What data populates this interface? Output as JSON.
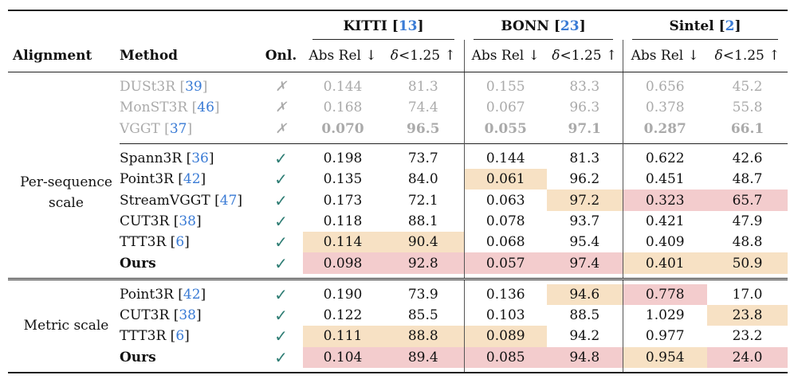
{
  "header": {
    "alignment": "Alignment",
    "method": "Method",
    "online": "Onl.",
    "datasets": [
      {
        "name": "KITTI",
        "ref": "13"
      },
      {
        "name": "BONN",
        "ref": "23"
      },
      {
        "name": "Sintel",
        "ref": "2"
      }
    ],
    "abs_rel": "Abs Rel ↓",
    "delta_sym": "δ",
    "delta_rest": "<1.25 ↑"
  },
  "colors": {
    "first": "#f3cccd",
    "second": "#f7e1c4",
    "citation": "#3a7bd5",
    "check": "#2e7d74"
  },
  "groups": [
    {
      "alignment": "",
      "blocks": [
        {
          "style": "gray",
          "rows": [
            {
              "method": "DUSt3R",
              "ref": "39",
              "online": "✗",
              "bold_values": false,
              "values": [
                "0.144",
                "81.3",
                "0.155",
                "83.3",
                "0.656",
                "45.2"
              ],
              "highlight": [
                null,
                null,
                null,
                null,
                null,
                null
              ]
            },
            {
              "method": "MonST3R",
              "ref": "46",
              "online": "✗",
              "bold_values": false,
              "values": [
                "0.168",
                "74.4",
                "0.067",
                "96.3",
                "0.378",
                "55.8"
              ],
              "highlight": [
                null,
                null,
                null,
                null,
                null,
                null
              ]
            },
            {
              "method": "VGGT",
              "ref": "37",
              "online": "✗",
              "bold_values": true,
              "values": [
                "0.070",
                "96.5",
                "0.055",
                "97.1",
                "0.287",
                "66.1"
              ],
              "highlight": [
                null,
                null,
                null,
                null,
                null,
                null
              ]
            }
          ]
        }
      ]
    },
    {
      "alignment": "Per-sequence scale",
      "blocks": [
        {
          "style": "normal",
          "rows": [
            {
              "method": "Spann3R",
              "ref": "36",
              "online": "✓",
              "values": [
                "0.198",
                "73.7",
                "0.144",
                "81.3",
                "0.622",
                "42.6"
              ],
              "highlight": [
                null,
                null,
                null,
                null,
                null,
                null
              ]
            },
            {
              "method": "Point3R",
              "ref": "42",
              "online": "✓",
              "values": [
                "0.135",
                "84.0",
                "0.061",
                "96.2",
                "0.451",
                "48.7"
              ],
              "highlight": [
                null,
                null,
                "second",
                null,
                null,
                null
              ]
            },
            {
              "method": "StreamVGGT",
              "ref": "47",
              "online": "✓",
              "values": [
                "0.173",
                "72.1",
                "0.063",
                "97.2",
                "0.323",
                "65.7"
              ],
              "highlight": [
                null,
                null,
                null,
                "second",
                "first",
                "first"
              ]
            },
            {
              "method": "CUT3R",
              "ref": "38",
              "online": "✓",
              "values": [
                "0.118",
                "88.1",
                "0.078",
                "93.7",
                "0.421",
                "47.9"
              ],
              "highlight": [
                null,
                null,
                null,
                null,
                null,
                null
              ]
            },
            {
              "method": "TTT3R",
              "ref": "6",
              "online": "✓",
              "values": [
                "0.114",
                "90.4",
                "0.068",
                "95.4",
                "0.409",
                "48.8"
              ],
              "highlight": [
                "second",
                "second",
                null,
                null,
                null,
                null
              ]
            },
            {
              "method": "Ours",
              "ref": "",
              "bold_method": true,
              "online": "✓",
              "values": [
                "0.098",
                "92.8",
                "0.057",
                "97.4",
                "0.401",
                "50.9"
              ],
              "highlight": [
                "first",
                "first",
                "first",
                "first",
                "second",
                "second"
              ]
            }
          ]
        }
      ]
    },
    {
      "alignment": "Metric scale",
      "blocks": [
        {
          "style": "normal",
          "rows": [
            {
              "method": "Point3R",
              "ref": "42",
              "online": "✓",
              "values": [
                "0.190",
                "73.9",
                "0.136",
                "94.6",
                "0.778",
                "17.0"
              ],
              "highlight": [
                null,
                null,
                null,
                "second",
                "first",
                null
              ]
            },
            {
              "method": "CUT3R",
              "ref": "38",
              "online": "✓",
              "values": [
                "0.122",
                "85.5",
                "0.103",
                "88.5",
                "1.029",
                "23.8"
              ],
              "highlight": [
                null,
                null,
                null,
                null,
                null,
                "second"
              ]
            },
            {
              "method": "TTT3R",
              "ref": "6",
              "online": "✓",
              "values": [
                "0.111",
                "88.8",
                "0.089",
                "94.2",
                "0.977",
                "23.2"
              ],
              "highlight": [
                "second",
                "second",
                "second",
                null,
                null,
                null
              ]
            },
            {
              "method": "Ours",
              "ref": "",
              "bold_method": true,
              "online": "✓",
              "values": [
                "0.104",
                "89.4",
                "0.085",
                "94.8",
                "0.954",
                "24.0"
              ],
              "highlight": [
                "first",
                "first",
                "first",
                "first",
                "second",
                "first"
              ]
            }
          ]
        }
      ]
    }
  ]
}
